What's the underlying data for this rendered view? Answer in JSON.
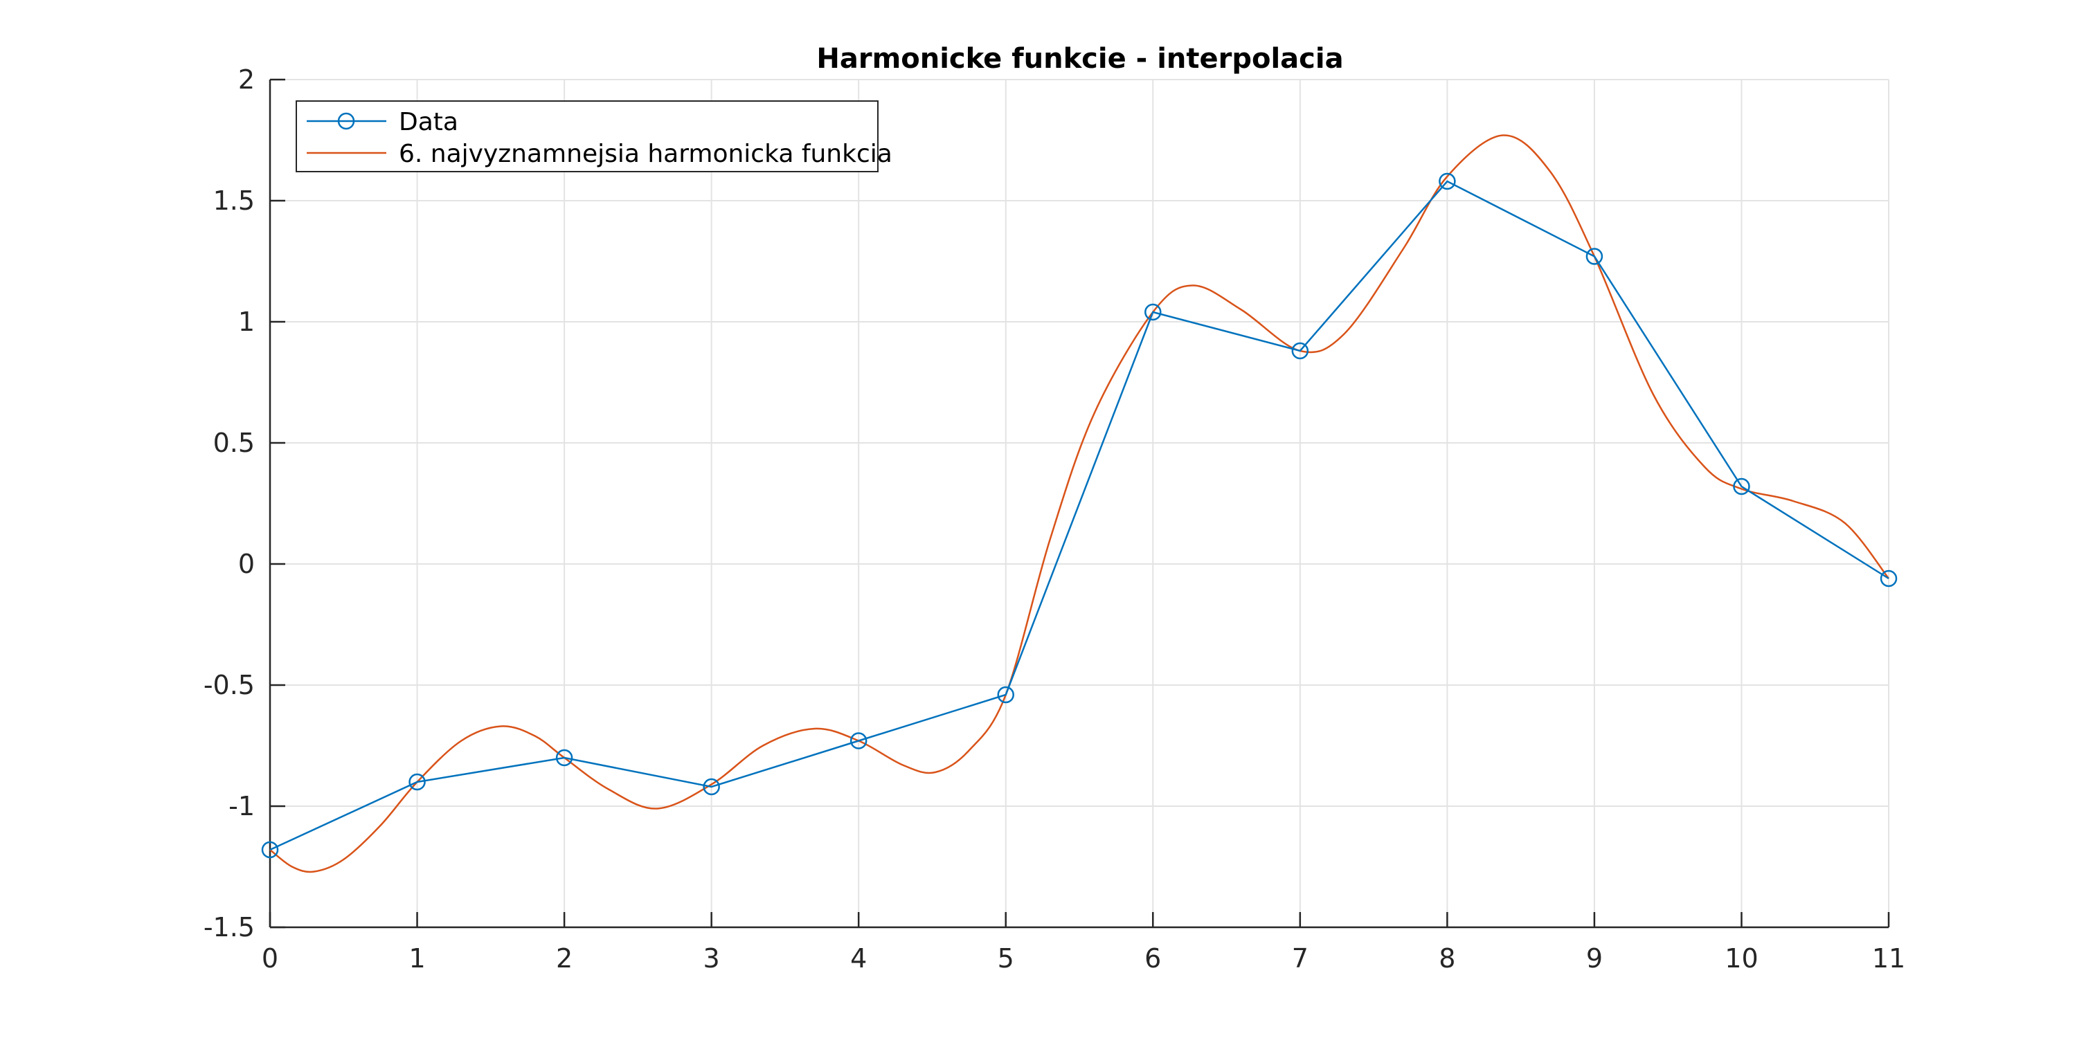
{
  "chart_data": {
    "type": "line",
    "title": "Harmonicke funkcie - interpolacia",
    "xlabel": "",
    "ylabel": "",
    "xlim": [
      0,
      11
    ],
    "ylim": [
      -1.5,
      2
    ],
    "x_ticks": [
      0,
      1,
      2,
      3,
      4,
      5,
      6,
      7,
      8,
      9,
      10,
      11
    ],
    "y_ticks": [
      -1.5,
      -1,
      -0.5,
      0,
      0.5,
      1,
      1.5,
      2
    ],
    "x_tick_labels": [
      "0",
      "1",
      "2",
      "3",
      "4",
      "5",
      "6",
      "7",
      "8",
      "9",
      "10",
      "11"
    ],
    "y_tick_labels": [
      "-1.5",
      "-1",
      "-0.5",
      "0",
      "0.5",
      "1",
      "1.5",
      "2"
    ],
    "grid": true,
    "legend_position": "top-left",
    "series": [
      {
        "name": "Data",
        "color": "#0072BD",
        "marker": "circle",
        "x": [
          0,
          1,
          2,
          3,
          4,
          5,
          6,
          7,
          8,
          9,
          10,
          11
        ],
        "y": [
          -1.18,
          -0.9,
          -0.8,
          -0.92,
          -0.73,
          -0.54,
          1.04,
          0.88,
          1.58,
          1.27,
          0.32,
          -0.06
        ]
      },
      {
        "name": "6. najvyznamnejsia harmonicka funkcia",
        "color": "#D95319",
        "marker": "none",
        "x": [
          0,
          0.15,
          0.3,
          0.5,
          0.75,
          1,
          1.3,
          1.57,
          1.8,
          2,
          2.3,
          2.63,
          3,
          3.35,
          3.7,
          4,
          4.3,
          4.52,
          4.75,
          5,
          5.3,
          5.6,
          6,
          6.27,
          6.6,
          7,
          7.3,
          7.7,
          8,
          8.38,
          8.7,
          9,
          9.4,
          9.75,
          10,
          10.35,
          10.7,
          11
        ],
        "y": [
          -1.18,
          -1.25,
          -1.27,
          -1.22,
          -1.08,
          -0.9,
          -0.73,
          -0.67,
          -0.71,
          -0.8,
          -0.93,
          -1.01,
          -0.91,
          -0.75,
          -0.68,
          -0.73,
          -0.83,
          -0.86,
          -0.77,
          -0.54,
          0.1,
          0.62,
          1.04,
          1.15,
          1.05,
          0.88,
          0.95,
          1.3,
          1.6,
          1.77,
          1.62,
          1.27,
          0.7,
          0.4,
          0.31,
          0.26,
          0.17,
          -0.06
        ]
      }
    ]
  }
}
